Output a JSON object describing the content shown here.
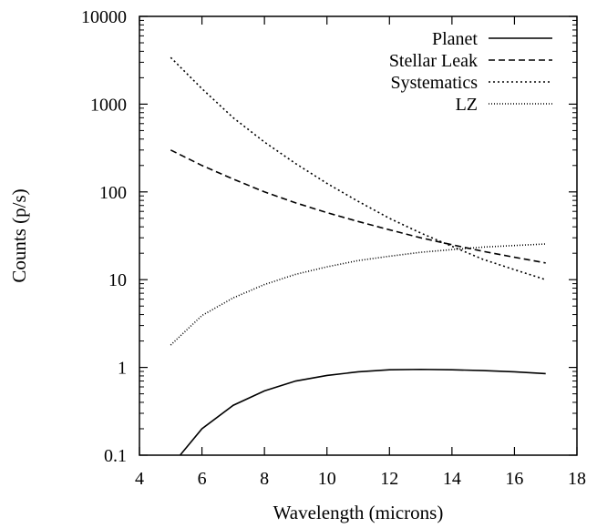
{
  "chart_data": {
    "type": "line",
    "title": "",
    "xlabel": "Wavelength (microns)",
    "ylabel": "Counts (p/s)",
    "xlim": [
      4,
      18
    ],
    "ylim": [
      0.1,
      10000
    ],
    "yscale": "log",
    "grid": false,
    "legend_position": "top-right",
    "x_ticks": [
      4,
      6,
      8,
      10,
      12,
      14,
      16,
      18
    ],
    "x_tick_labels": [
      "4",
      "6",
      "8",
      "10",
      "12",
      "14",
      "16",
      "18"
    ],
    "y_ticks": [
      0.1,
      1,
      10,
      100,
      1000,
      10000
    ],
    "y_tick_labels": [
      "0.1",
      "1",
      "10",
      "100",
      "1000",
      "10000"
    ],
    "series": [
      {
        "name": "Planet",
        "style": "solid",
        "x": [
          5,
          5.3,
          6,
          7,
          8,
          9,
          10,
          11,
          12,
          13,
          14,
          15,
          16,
          17
        ],
        "y": [
          0.06,
          0.1,
          0.2,
          0.37,
          0.54,
          0.7,
          0.81,
          0.89,
          0.94,
          0.95,
          0.94,
          0.92,
          0.89,
          0.85
        ]
      },
      {
        "name": "Stellar Leak",
        "style": "dashed",
        "x": [
          5,
          6,
          7,
          8,
          9,
          10,
          11,
          12,
          13,
          14,
          15,
          16,
          17
        ],
        "y": [
          300,
          200,
          140,
          100,
          75,
          58,
          46,
          37,
          30,
          25,
          21,
          18,
          15.5
        ]
      },
      {
        "name": "Systematics",
        "style": "dotted",
        "x": [
          5,
          6,
          7,
          8,
          9,
          10,
          11,
          12,
          13,
          14,
          15,
          16,
          17
        ],
        "y": [
          3400,
          1500,
          700,
          370,
          210,
          125,
          78,
          50,
          34,
          24,
          17,
          13,
          10
        ]
      },
      {
        "name": "LZ",
        "style": "dense-dotted",
        "x": [
          5,
          6,
          7,
          8,
          9,
          10,
          11,
          12,
          13,
          14,
          15,
          16,
          17
        ],
        "y": [
          1.8,
          3.9,
          6.2,
          8.8,
          11.5,
          14,
          16.5,
          18.5,
          20.5,
          22,
          23.5,
          24.5,
          25.5
        ]
      }
    ]
  }
}
